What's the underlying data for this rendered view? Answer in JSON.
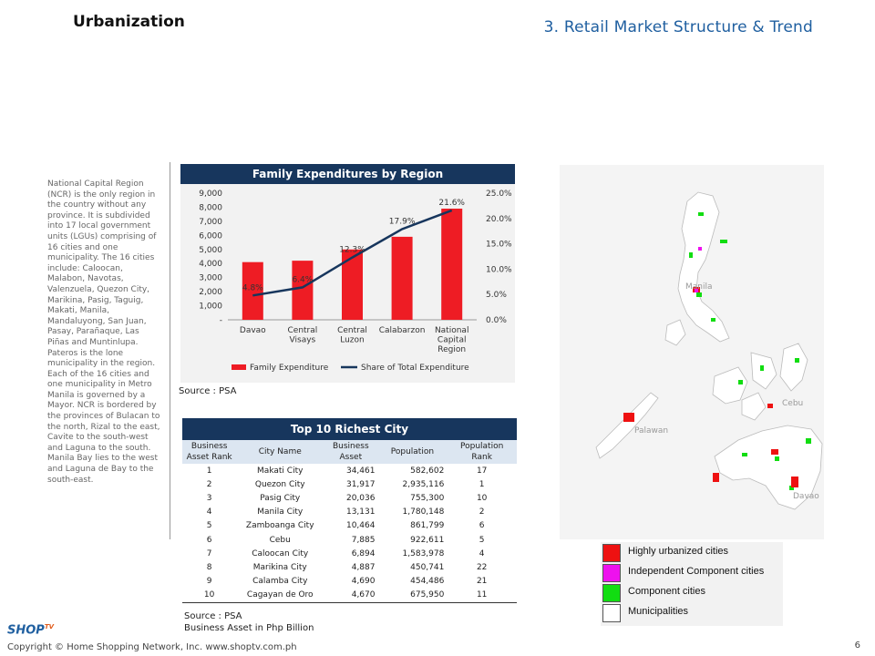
{
  "page": {
    "title": "Urbanization",
    "section_title": "3. Retail Market Structure & Trend",
    "page_number": "6",
    "copyright": "Copyright © Home Shopping Network, Inc. www.shoptv.com.ph",
    "logo_text": "SHOP",
    "logo_sup": "TV"
  },
  "body_text": "National Capital Region (NCR) is the only region in the country without any province. It is subdivided into 17 local government units (LGUs) comprising of 16 cities and one municipality. The 16 cities include: Caloocan, Malabon, Navotas, Valenzuela, Quezon City, Marikina, Pasig, Taguig, Makati, Manila, Mandaluyong, San Juan, Pasay, Parañaque, Las Piñas and Muntinlupa. Pateros is the lone municipality in the region. Each of the 16 cities and one municipality in Metro Manila is governed by a Mayor. NCR is bordered by the provinces of Bulacan to the north, Rizal to the east, Cavite to the south-west and Laguna to the south. Manila Bay lies to the west and Laguna de Bay to the south-east.",
  "chart_source": "Source : PSA",
  "chart_data": {
    "type": "bar",
    "title": "Family Expenditures by Region",
    "categories": [
      "Davao",
      "Central Visays",
      "Central Luzon",
      "Calabarzon",
      "National Capital Region"
    ],
    "category_lines": [
      [
        "Davao"
      ],
      [
        "Central",
        "Visays"
      ],
      [
        "Central",
        "Luzon"
      ],
      [
        "Calabarzon"
      ],
      [
        "National",
        "Capital",
        "Region"
      ]
    ],
    "series": [
      {
        "name": "Family Expenditure",
        "type": "bar",
        "axis": "left",
        "color": "#ee1c24",
        "values": [
          4100,
          4200,
          5000,
          5900,
          7900
        ]
      },
      {
        "name": "Share of Total Expenditure",
        "type": "line",
        "axis": "right",
        "color": "#17365d",
        "values": [
          4.8,
          6.4,
          12.3,
          17.9,
          21.6
        ],
        "labels": [
          "4.8%",
          "6.4%",
          "12.3%",
          "17.9%",
          "21.6%"
        ]
      }
    ],
    "ylim": [
      0,
      9000
    ],
    "y2lim": [
      0,
      25
    ],
    "y_ticks": [
      "-",
      "1,000",
      "2,000",
      "3,000",
      "4,000",
      "5,000",
      "6,000",
      "7,000",
      "8,000",
      "9,000"
    ],
    "y2_ticks": [
      "0.0%",
      "5.0%",
      "10.0%",
      "15.0%",
      "20.0%",
      "25.0%"
    ],
    "legend_position": "bottom"
  },
  "table": {
    "title": "Top 10 Richest City",
    "headers": {
      "rank_line1": "Business",
      "rank_line2": "Asset Rank",
      "city": "City Name",
      "asset_line1": "Business",
      "asset_line2": "Asset",
      "population": "Population",
      "poprank_line1": "Population",
      "poprank_line2": "Rank"
    },
    "rows": [
      {
        "rank": "1",
        "city": "Makati City",
        "asset": "34,461",
        "population": "582,602",
        "pop_rank": "17"
      },
      {
        "rank": "2",
        "city": "Quezon City",
        "asset": "31,917",
        "population": "2,935,116",
        "pop_rank": "1"
      },
      {
        "rank": "3",
        "city": "Pasig City",
        "asset": "20,036",
        "population": "755,300",
        "pop_rank": "10"
      },
      {
        "rank": "4",
        "city": "Manila City",
        "asset": "13,131",
        "population": "1,780,148",
        "pop_rank": "2"
      },
      {
        "rank": "5",
        "city": "Zamboanga City",
        "asset": "10,464",
        "population": "861,799",
        "pop_rank": "6"
      },
      {
        "rank": "6",
        "city": "Cebu",
        "asset": "7,885",
        "population": "922,611",
        "pop_rank": "5"
      },
      {
        "rank": "7",
        "city": "Caloocan City",
        "asset": "6,894",
        "population": "1,583,978",
        "pop_rank": "4"
      },
      {
        "rank": "8",
        "city": "Marikina City",
        "asset": "4,887",
        "population": "450,741",
        "pop_rank": "22"
      },
      {
        "rank": "9",
        "city": "Calamba City",
        "asset": "4,690",
        "population": "454,486",
        "pop_rank": "21"
      },
      {
        "rank": "10",
        "city": "Cagayan de Oro",
        "asset": "4,670",
        "population": "675,950",
        "pop_rank": "11"
      }
    ],
    "source_line1": "Source : PSA",
    "source_line2": "Business Asset in Php Billion"
  },
  "map": {
    "labels": {
      "manila": "Manila",
      "cebu": "Cebu",
      "palawan": "Palawan",
      "davao": "Davao"
    },
    "land_color": "#ffffff",
    "border_color": "#bbbbbb"
  },
  "legend": {
    "items": [
      {
        "label": "Highly urbanized cities",
        "color": "#ee1111"
      },
      {
        "label": "Independent Component cities",
        "color": "#ee11ee"
      },
      {
        "label": "Component cities",
        "color": "#11dd11"
      },
      {
        "label": "Municipalities",
        "color": "#ffffff"
      }
    ]
  }
}
